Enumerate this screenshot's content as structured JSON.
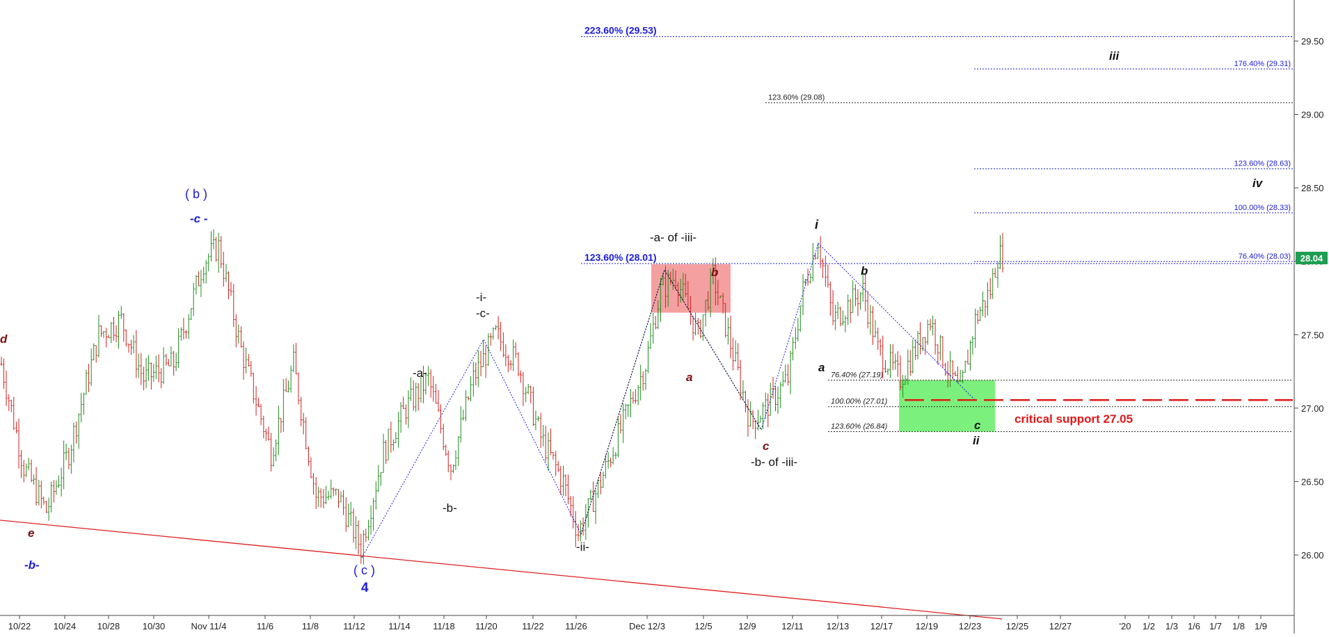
{
  "chart_data": {
    "type": "ohlc",
    "y_axis": {
      "min": 25.6,
      "max": 29.8,
      "ticks": [
        "25.50",
        "26.00",
        "26.50",
        "27.00",
        "27.50",
        "28.00",
        "28.50",
        "29.00",
        "29.50"
      ],
      "position": "right"
    },
    "x_axis": {
      "labels": [
        "10/22",
        "10/24",
        "10/28",
        "10/30",
        "Nov 11/4",
        "11/6",
        "11/8",
        "11/12",
        "11/14",
        "11/18",
        "11/20",
        "11/22",
        "11/26",
        "Dec 12/3",
        "12/5",
        "12/9",
        "12/11",
        "12/13",
        "12/17",
        "12/19",
        "12/23",
        "12/25",
        "12/27",
        "'20",
        "1/2",
        "1/3",
        "1/6",
        "1/7",
        "1/8",
        "1/9"
      ]
    },
    "last_price": "28.04",
    "price_path": [
      {
        "x": 0,
        "y": 27.3
      },
      {
        "x": 3,
        "y": 26.6
      },
      {
        "x": 6,
        "y": 26.3
      },
      {
        "x": 9,
        "y": 26.7
      },
      {
        "x": 13,
        "y": 27.5
      },
      {
        "x": 16,
        "y": 27.6
      },
      {
        "x": 19,
        "y": 27.2
      },
      {
        "x": 23,
        "y": 27.3
      },
      {
        "x": 27,
        "y": 28.0
      },
      {
        "x": 29,
        "y": 28.1
      },
      {
        "x": 32,
        "y": 27.4
      },
      {
        "x": 36,
        "y": 26.7
      },
      {
        "x": 39,
        "y": 27.3
      },
      {
        "x": 42,
        "y": 26.4
      },
      {
        "x": 45,
        "y": 26.4
      },
      {
        "x": 48,
        "y": 26.05
      },
      {
        "x": 51,
        "y": 26.7
      },
      {
        "x": 54,
        "y": 27.0
      },
      {
        "x": 57,
        "y": 27.2
      },
      {
        "x": 60,
        "y": 26.6
      },
      {
        "x": 63,
        "y": 27.2
      },
      {
        "x": 66,
        "y": 27.5
      },
      {
        "x": 69,
        "y": 27.3
      },
      {
        "x": 72,
        "y": 26.8
      },
      {
        "x": 75,
        "y": 26.5
      },
      {
        "x": 77,
        "y": 26.15
      },
      {
        "x": 80,
        "y": 26.5
      },
      {
        "x": 83,
        "y": 26.9
      },
      {
        "x": 86,
        "y": 27.3
      },
      {
        "x": 88,
        "y": 27.8
      },
      {
        "x": 90,
        "y": 27.9
      },
      {
        "x": 93,
        "y": 27.5
      },
      {
        "x": 95,
        "y": 27.9
      },
      {
        "x": 97,
        "y": 27.5
      },
      {
        "x": 100,
        "y": 26.9
      },
      {
        "x": 102,
        "y": 27.0
      },
      {
        "x": 105,
        "y": 27.2
      },
      {
        "x": 107,
        "y": 27.8
      },
      {
        "x": 109,
        "y": 28.15
      },
      {
        "x": 111,
        "y": 27.6
      },
      {
        "x": 113,
        "y": 27.7
      },
      {
        "x": 115,
        "y": 27.8
      },
      {
        "x": 117,
        "y": 27.4
      },
      {
        "x": 120,
        "y": 27.2
      },
      {
        "x": 122,
        "y": 27.4
      },
      {
        "x": 124,
        "y": 27.6
      },
      {
        "x": 126,
        "y": 27.3
      },
      {
        "x": 128,
        "y": 27.1
      },
      {
        "x": 130,
        "y": 27.6
      },
      {
        "x": 132,
        "y": 27.8
      },
      {
        "x": 133,
        "y": 28.04
      }
    ],
    "fib_levels": [
      {
        "label": "223.60% (29.53)",
        "value": 29.53,
        "color": "#1a1adb",
        "emphasis": true
      },
      {
        "label": "176.40% (29.31)",
        "value": 29.31,
        "color": "#1a1adb"
      },
      {
        "label": "123.60% (29.08)",
        "value": 29.08,
        "color": "#222222"
      },
      {
        "label": "123.60% (28.63)",
        "value": 28.63,
        "color": "#1a1adb"
      },
      {
        "label": "100.00% (28.33)",
        "value": 28.33,
        "color": "#1a1adb"
      },
      {
        "label": "123.60% (28.01)",
        "value": 28.01,
        "color": "#1a1adb",
        "emphasis": true
      },
      {
        "label": "76.40% (28.03)",
        "value": 28.03,
        "color": "#1a1adb"
      },
      {
        "label": "76.40% (27.19)",
        "value": 27.19,
        "color": "#222222"
      },
      {
        "label": "100.00% (27.01)",
        "value": 27.01,
        "color": "#222222"
      },
      {
        "label": "123.60% (26.84)",
        "value": 26.84,
        "color": "#222222"
      }
    ],
    "critical_support": {
      "label": "critical support 27.05",
      "value": 27.05,
      "color": "#e01818"
    },
    "zones": [
      {
        "name": "resistance-zone",
        "color": "#f4a0a0",
        "y_top": 27.98,
        "y_bottom": 27.65
      },
      {
        "name": "support-zone",
        "color": "#7cf07c",
        "y_top": 27.19,
        "y_bottom": 26.84
      }
    ],
    "wave_labels": [
      "d",
      "e",
      "-b-",
      "( b )",
      "-c -",
      "( c )",
      "4",
      "-a-",
      "-b-",
      "-i-",
      "-c-",
      "-ii-",
      "-a- of -iii-",
      "b",
      "a",
      "c",
      "-b- of -iii-",
      "i",
      "a",
      "b",
      "c",
      "ii",
      "iii",
      "iv"
    ],
    "colors": {
      "up_bar": "#1e8a1e",
      "down_bar": "#d02020",
      "trendline": "#e02020",
      "wave_blue": "#1a1adb",
      "wave_maroon": "#7a1010",
      "price_tag": "#1e9e52"
    }
  }
}
